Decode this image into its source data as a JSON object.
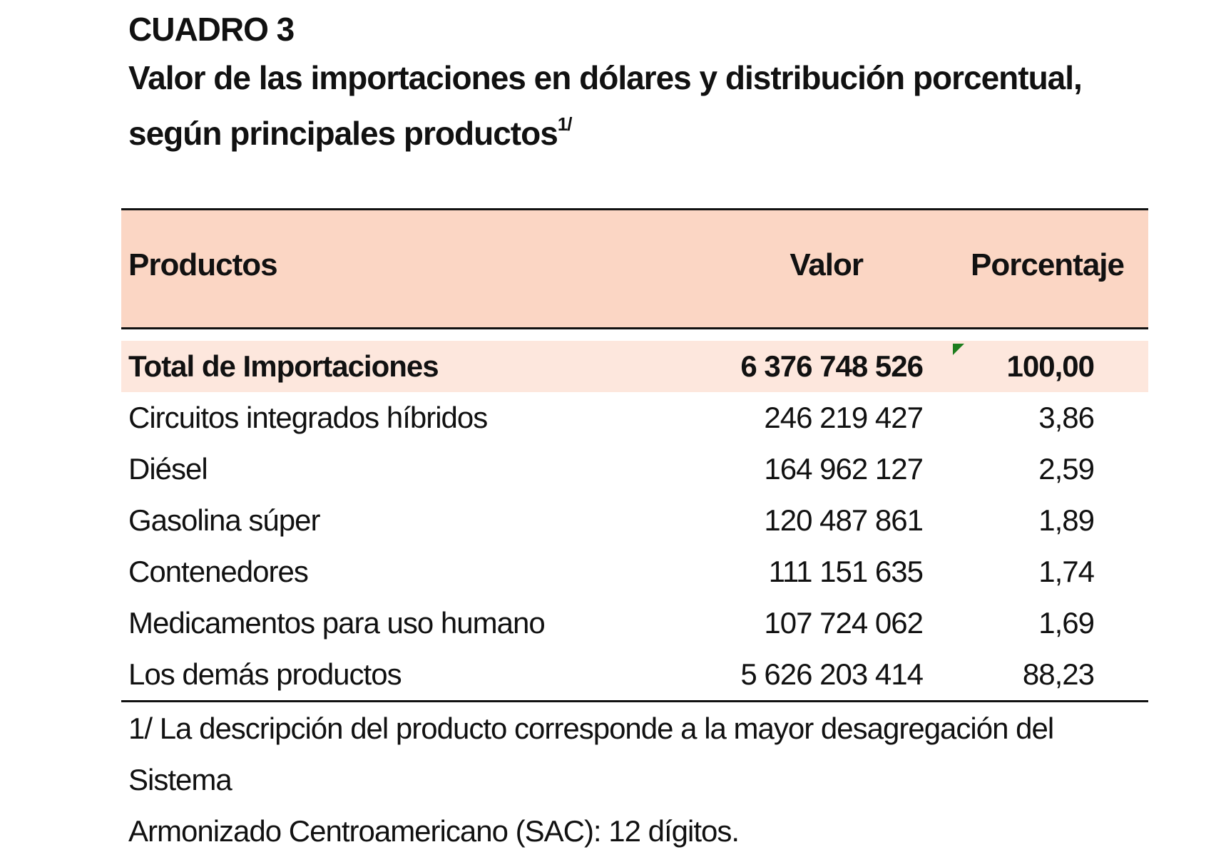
{
  "title": {
    "label": "CUADRO 3",
    "subtitle_line1": "Valor de las importaciones en dólares y distribución porcentual,",
    "subtitle_line2": "según principales productos",
    "subtitle_sup": "1/"
  },
  "table": {
    "headers": {
      "product": "Productos",
      "value": "Valor",
      "percent": "Porcentaje"
    },
    "total": {
      "product": "Total de Importaciones",
      "value": "6 376 748 526",
      "percent": "100,00"
    },
    "rows": [
      {
        "product": "Circuitos integrados híbridos",
        "value": "246 219 427",
        "percent": "3,86"
      },
      {
        "product": "Diésel",
        "value": "164 962 127",
        "percent": "2,59"
      },
      {
        "product": "Gasolina súper",
        "value": "120 487 861",
        "percent": "1,89"
      },
      {
        "product": "Contenedores",
        "value": "111 151 635",
        "percent": "1,74"
      },
      {
        "product": "Medicamentos para uso humano",
        "value": "107 724 062",
        "percent": "1,69"
      },
      {
        "product": "Los demás productos",
        "value": "5 626 203 414",
        "percent": "88,23"
      }
    ]
  },
  "footnote": {
    "line1": "1/ La descripción del producto corresponde a la mayor desagregación del Sistema",
    "line2": "Armonizado Centroamericano (SAC): 12 dígitos."
  },
  "colors": {
    "header_bg": "#fbd6c4",
    "total_bg": "#fde7dd",
    "flag": "#1e7d1e"
  }
}
